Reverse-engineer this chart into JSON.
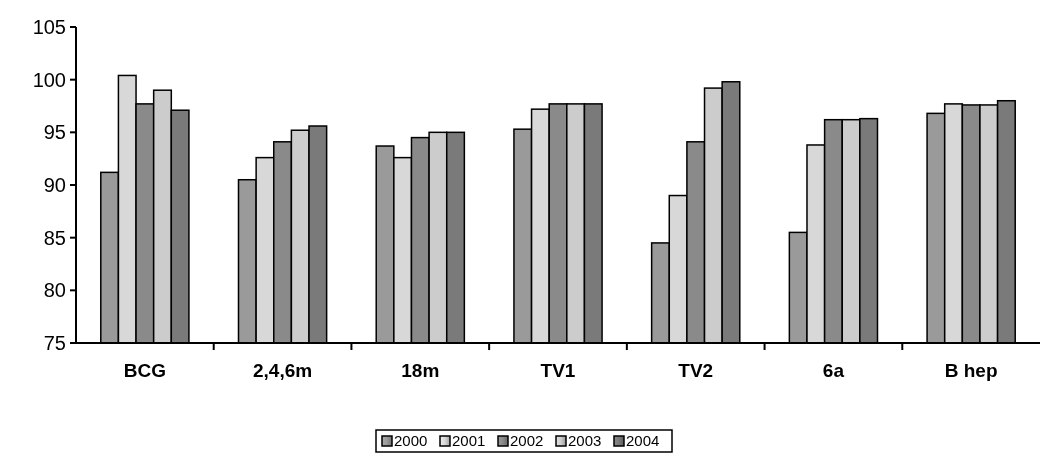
{
  "chart_data": {
    "type": "bar",
    "categories": [
      "BCG",
      "2,4,6m",
      "18m",
      "TV1",
      "TV2",
      "6a",
      "B hep"
    ],
    "series": [
      {
        "name": "2000",
        "color": "#9a9a9a",
        "values": [
          91.2,
          90.5,
          93.7,
          95.3,
          84.5,
          85.5,
          96.8
        ]
      },
      {
        "name": "2001",
        "color": "#d8d8d8",
        "values": [
          100.4,
          92.6,
          92.6,
          97.2,
          89.0,
          93.8,
          97.7
        ]
      },
      {
        "name": "2002",
        "color": "#8a8a8a",
        "values": [
          97.7,
          94.1,
          94.5,
          97.7,
          94.1,
          96.2,
          97.6
        ]
      },
      {
        "name": "2003",
        "color": "#cccccc",
        "values": [
          99.0,
          95.2,
          95.0,
          97.7,
          99.2,
          96.2,
          97.6
        ]
      },
      {
        "name": "2004",
        "color": "#7a7a7a",
        "values": [
          97.1,
          95.6,
          95.0,
          97.7,
          99.8,
          96.3,
          98.0
        ]
      }
    ],
    "ylim": [
      75,
      105
    ],
    "yticks": [
      75,
      80,
      85,
      90,
      95,
      100,
      105
    ],
    "grid": false,
    "legend": "bottom"
  }
}
